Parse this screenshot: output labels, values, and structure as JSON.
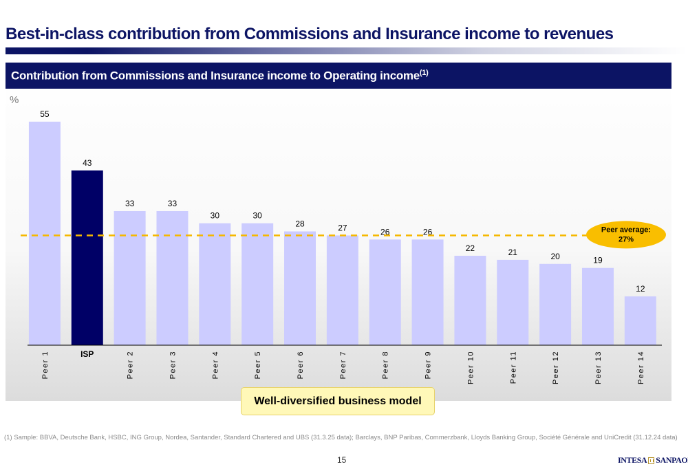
{
  "slide": {
    "title": "Best-in-class contribution from Commissions and Insurance income to revenues",
    "page_number": "15"
  },
  "panel": {
    "header": "Contribution from Commissions and Insurance income to Operating income",
    "header_sup": "(1)",
    "unit": "%"
  },
  "chart_data": {
    "type": "bar",
    "categories": [
      "Peer 1",
      "ISP",
      "Peer 2",
      "Peer 3",
      "Peer 4",
      "Peer 5",
      "Peer 6",
      "Peer 7",
      "Peer 8",
      "Peer 9",
      "Peer 10",
      "Peer 11",
      "Peer 12",
      "Peer 13",
      "Peer 14"
    ],
    "values": [
      55,
      43,
      33,
      33,
      30,
      30,
      28,
      27,
      26,
      26,
      22,
      21,
      20,
      19,
      12
    ],
    "highlight_category": "ISP",
    "ylabel": "%",
    "ylim": [
      0,
      60
    ],
    "grid": false,
    "reference_line": {
      "value": 27,
      "label_line1": "Peer average:",
      "label_line2": "27%"
    },
    "colors": {
      "bar": "#ccccff",
      "highlight": "#000066",
      "reference_line": "#f5b800",
      "reference_label_bg": "#f9be00"
    }
  },
  "callout": {
    "text": "Well-diversified business model"
  },
  "footnote": "(1)  Sample: BBVA, Deutsche Bank, HSBC, ING Group, Nordea, Santander, Standard Chartered and UBS (31.3.25 data); Barclays, BNP Paribas, Commerzbank, Lloyds Banking Group, Société Générale and UniCredit (31.12.24 data)",
  "logo": {
    "left": "INTESA",
    "right": "SANPAOLO"
  }
}
